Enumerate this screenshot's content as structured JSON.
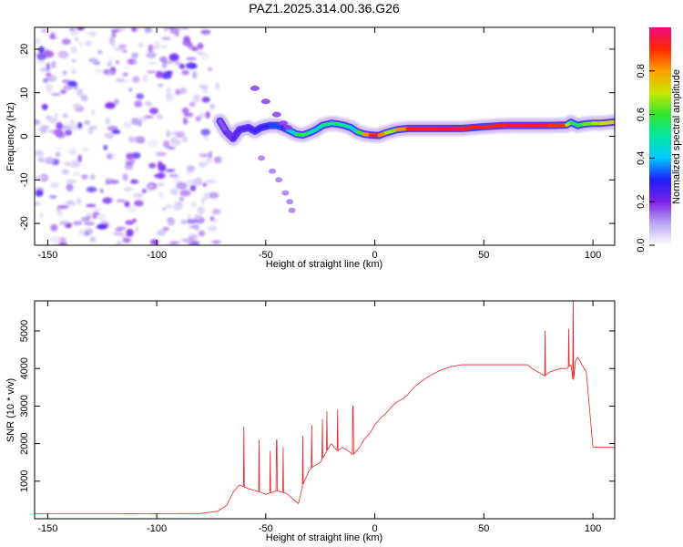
{
  "title": "PAZ1.2025.314.00.36.G26",
  "chart_data": [
    {
      "type": "heatmap",
      "name": "spectrogram",
      "xlabel": "Height of straight line (km)",
      "ylabel": "Frequency (Hz)",
      "xlim": [
        -156,
        110
      ],
      "ylim": [
        -25,
        25
      ],
      "xticks": [
        -150,
        -100,
        -50,
        0,
        50,
        100
      ],
      "xtick_labels": [
        "-150",
        "-100",
        "-50",
        "0",
        "50",
        "100"
      ],
      "yticks": [
        -20,
        -10,
        0,
        10,
        20
      ],
      "ytick_labels": [
        "-20",
        "-10",
        "0",
        "10",
        "20"
      ],
      "noise_region_x": [
        -156,
        -71
      ],
      "ridge": {
        "x": [
          -71,
          -68,
          -65,
          -62,
          -58,
          -55,
          -52,
          -48,
          -45,
          -42,
          -40,
          -36,
          -33,
          -30,
          -27,
          -24,
          -20,
          -17,
          -14,
          -11,
          -8,
          -5,
          -2,
          0,
          2,
          5,
          8,
          10,
          15,
          20,
          30,
          40,
          50,
          60,
          70,
          80,
          88,
          90,
          93,
          96,
          100,
          104,
          108,
          110
        ],
        "y": [
          3.5,
          1.0,
          -0.5,
          1.5,
          2.0,
          1.2,
          2.0,
          2.5,
          2.5,
          2.0,
          1.5,
          0.5,
          0.3,
          0.8,
          1.5,
          2.5,
          3.0,
          2.8,
          2.5,
          2.0,
          1.0,
          0.5,
          0.3,
          0.2,
          0.2,
          0.8,
          1.2,
          1.5,
          1.8,
          1.8,
          1.8,
          1.8,
          2.2,
          2.5,
          2.5,
          2.5,
          2.6,
          3.2,
          2.5,
          2.8,
          3.0,
          3.0,
          3.2,
          3.3
        ],
        "amplitude": [
          0.15,
          0.18,
          0.2,
          0.25,
          0.22,
          0.28,
          0.25,
          0.3,
          0.35,
          0.3,
          0.3,
          0.55,
          0.6,
          0.55,
          0.4,
          0.55,
          0.5,
          0.45,
          0.6,
          0.4,
          0.5,
          0.7,
          0.92,
          0.95,
          0.9,
          0.75,
          0.6,
          0.7,
          0.92,
          0.93,
          0.95,
          0.95,
          0.88,
          0.95,
          0.95,
          0.93,
          0.85,
          0.5,
          0.55,
          0.6,
          0.65,
          0.7,
          0.75,
          0.72
        ]
      },
      "side_branch": {
        "x": [
          -55,
          -50,
          -45,
          -42,
          -40
        ],
        "y": [
          11,
          8,
          5,
          3,
          2
        ]
      },
      "scatter_blobs": {
        "x": [
          -52,
          -47,
          -44,
          -41,
          -39,
          -38
        ],
        "y": [
          -5,
          -8,
          -10,
          -13,
          -15,
          -17
        ]
      },
      "colorbar": {
        "label": "Normalized spectral amplitude",
        "range": [
          0,
          1
        ],
        "ticks": [
          0.0,
          0.2,
          0.4,
          0.6,
          0.8
        ],
        "tick_labels": [
          "0.0",
          "0.2",
          "0.4",
          "0.6",
          "0.8"
        ],
        "stops": [
          "#ffffff",
          "#b9a6f2",
          "#7d20e8",
          "#1e1efa",
          "#00c8ff",
          "#00e6a0",
          "#32e632",
          "#c8e600",
          "#ffa000",
          "#ff2800",
          "#f00a82"
        ]
      }
    },
    {
      "type": "line",
      "name": "snr",
      "xlabel": "Height of straight line (km)",
      "ylabel": "SNR (10 * v/v)",
      "xlim": [
        -156,
        110
      ],
      "ylim": [
        0,
        5800
      ],
      "xticks": [
        -150,
        -100,
        -50,
        0,
        50,
        100
      ],
      "xtick_labels": [
        "-150",
        "-100",
        "-50",
        "0",
        "50",
        "100"
      ],
      "yticks": [
        1000,
        2000,
        3000,
        4000,
        5000
      ],
      "ytick_labels": [
        "1000",
        "2000",
        "3000",
        "4000",
        "5000"
      ],
      "color": "#ee2222",
      "envelope": {
        "x": [
          -156,
          -120,
          -80,
          -72,
          -68,
          -65,
          -62,
          -60,
          -58,
          -55,
          -52,
          -50,
          -47,
          -45,
          -42,
          -40,
          -37,
          -35,
          -33,
          -30,
          -28,
          -25,
          -22,
          -20,
          -17,
          -15,
          -12,
          -10,
          -7,
          -5,
          -2,
          0,
          3,
          5,
          8,
          10,
          13,
          15,
          18,
          20,
          25,
          30,
          35,
          40,
          50,
          60,
          70,
          72,
          75,
          78,
          80,
          85,
          88,
          90,
          91,
          92,
          93,
          95,
          96,
          97,
          100,
          105,
          110
        ],
        "mean": [
          130,
          130,
          140,
          200,
          350,
          700,
          900,
          850,
          800,
          750,
          700,
          650,
          700,
          750,
          700,
          650,
          500,
          400,
          900,
          1300,
          1400,
          1500,
          1800,
          2000,
          1800,
          1900,
          1800,
          1700,
          1900,
          2100,
          2300,
          2500,
          2700,
          2800,
          3000,
          3100,
          3200,
          3300,
          3500,
          3600,
          3800,
          3950,
          4050,
          4100,
          4100,
          4100,
          4100,
          4000,
          3900,
          3800,
          3900,
          4000,
          4000,
          4100,
          3600,
          4200,
          4300,
          4100,
          4000,
          3900,
          1900,
          1900,
          1900
        ],
        "noise": [
          60,
          60,
          60,
          80,
          350,
          700,
          800,
          700,
          600,
          600,
          550,
          500,
          550,
          600,
          700,
          700,
          550,
          400,
          550,
          700,
          700,
          800,
          900,
          1000,
          800,
          800,
          700,
          600,
          600,
          600,
          500,
          450,
          400,
          350,
          300,
          300,
          300,
          250,
          200,
          180,
          150,
          120,
          100,
          100,
          100,
          100,
          100,
          300,
          500,
          600,
          500,
          300,
          300,
          700,
          1200,
          900,
          500,
          300,
          200,
          80,
          80,
          80,
          80
        ]
      },
      "peak": {
        "x": 91,
        "y": 5800
      },
      "spikes": [
        {
          "x": -60,
          "y": 2450
        },
        {
          "x": -53,
          "y": 2100
        },
        {
          "x": -48,
          "y": 1800
        },
        {
          "x": -45,
          "y": 2100
        },
        {
          "x": -42,
          "y": 1900
        },
        {
          "x": -33,
          "y": 2200
        },
        {
          "x": -29,
          "y": 2500
        },
        {
          "x": -24,
          "y": 2650
        },
        {
          "x": -22,
          "y": 2850
        },
        {
          "x": -17,
          "y": 2900
        },
        {
          "x": -10,
          "y": 3000
        },
        {
          "x": 78,
          "y": 5000
        },
        {
          "x": 89,
          "y": 5050
        },
        {
          "x": 91,
          "y": 5800
        }
      ]
    }
  ]
}
